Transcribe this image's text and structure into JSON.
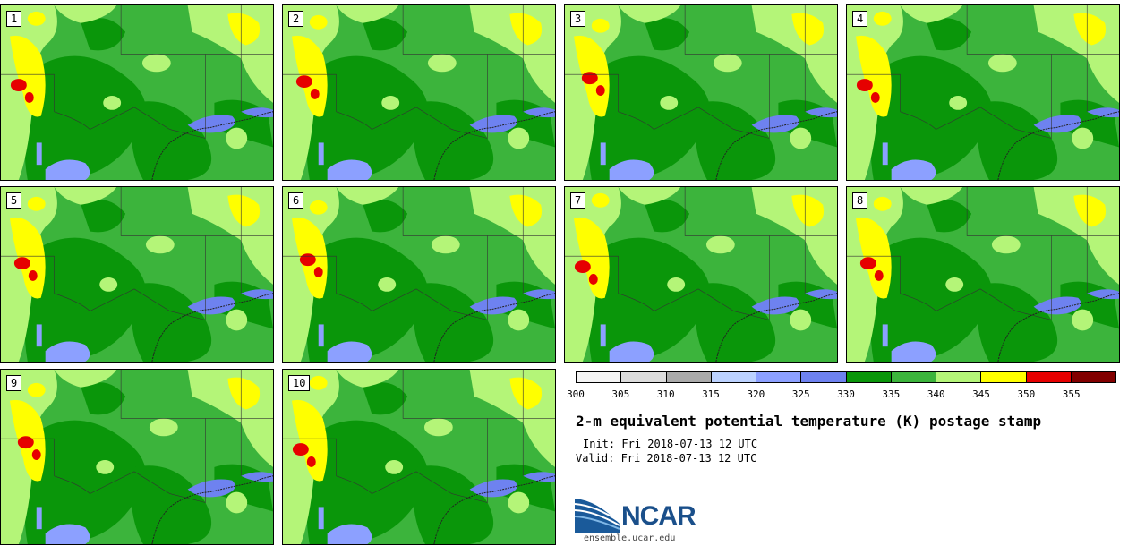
{
  "panels": [
    {
      "label": "1"
    },
    {
      "label": "2"
    },
    {
      "label": "3"
    },
    {
      "label": "4"
    },
    {
      "label": "5"
    },
    {
      "label": "6"
    },
    {
      "label": "7"
    },
    {
      "label": "8"
    },
    {
      "label": "9"
    },
    {
      "label": "10"
    }
  ],
  "colorbar": {
    "ticks": [
      "300",
      "305",
      "310",
      "315",
      "320",
      "325",
      "330",
      "335",
      "340",
      "345",
      "350",
      "355"
    ],
    "colors": [
      "#f4f4f4",
      "#dcdcdc",
      "#aaaaaa",
      "#bcd2ff",
      "#8ca0ff",
      "#6e82f0",
      "#0a960a",
      "#3cb43c",
      "#b4f578",
      "#ffff00",
      "#e60000",
      "#820000"
    ]
  },
  "title": "2-m equivalent potential temperature (K) postage stamp",
  "init": "Init: Fri 2018-07-13 12 UTC",
  "valid": "Valid: Fri 2018-07-13 12 UTC",
  "logo": {
    "text": "NCAR"
  },
  "url": "ensemble.ucar.edu"
}
